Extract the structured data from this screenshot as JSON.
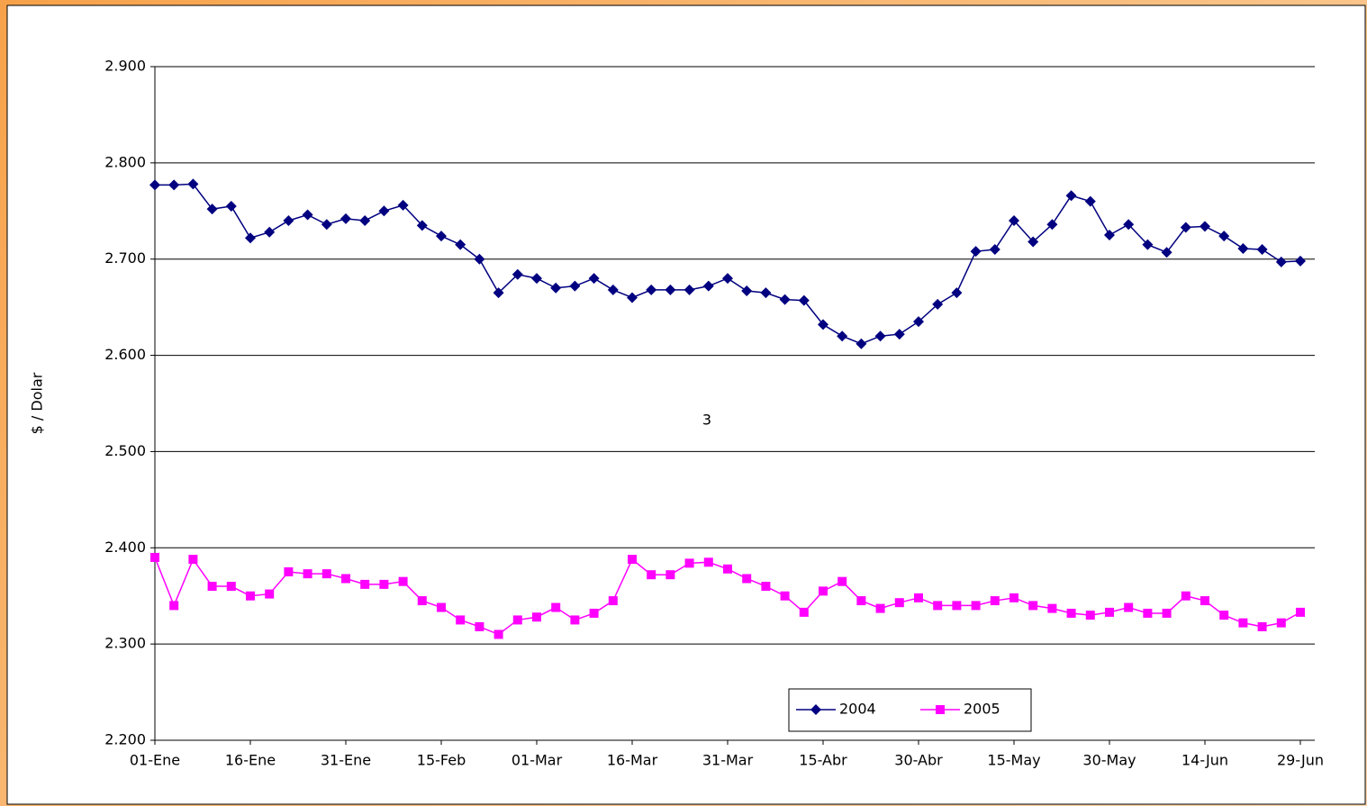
{
  "chart_data": {
    "type": "line",
    "y_label": "$ / Dolar",
    "annotation": "3",
    "categories": [
      "01-Ene",
      null,
      null,
      null,
      null,
      "16-Ene",
      null,
      null,
      null,
      null,
      "31-Ene",
      null,
      null,
      null,
      null,
      "15-Feb",
      null,
      null,
      null,
      null,
      "01-Mar",
      null,
      null,
      null,
      null,
      "16-Mar",
      null,
      null,
      null,
      null,
      "31-Mar",
      null,
      null,
      null,
      null,
      "15-Abr",
      null,
      null,
      null,
      null,
      "30-Abr",
      null,
      null,
      null,
      null,
      "15-May",
      null,
      null,
      null,
      null,
      "30-May",
      null,
      null,
      null,
      null,
      "14-Jun",
      null,
      null,
      null,
      null,
      "29-Jun"
    ],
    "series": [
      {
        "name": "2004",
        "color": "#000080",
        "marker": "diamond",
        "values": [
          2777,
          2777,
          2778,
          2752,
          2755,
          2722,
          2728,
          2740,
          2746,
          2736,
          2742,
          2740,
          2750,
          2756,
          2735,
          2724,
          2715,
          2700,
          2665,
          2684,
          2680,
          2670,
          2672,
          2680,
          2668,
          2660,
          2668,
          2668,
          2668,
          2672,
          2680,
          2667,
          2665,
          2658,
          2657,
          2632,
          2620,
          2612,
          2620,
          2622,
          2635,
          2653,
          2665,
          2708,
          2710,
          2740,
          2718,
          2736,
          2766,
          2760,
          2725,
          2736,
          2715,
          2707,
          2733,
          2734,
          2724,
          2711,
          2710,
          2697,
          2698
        ]
      },
      {
        "name": "2005",
        "color": "#ff00ff",
        "marker": "square",
        "values": [
          2390,
          2340,
          2388,
          2360,
          2360,
          2350,
          2352,
          2375,
          2373,
          2373,
          2368,
          2362,
          2362,
          2365,
          2345,
          2338,
          2325,
          2318,
          2310,
          2325,
          2328,
          2338,
          2325,
          2332,
          2345,
          2388,
          2372,
          2372,
          2384,
          2385,
          2378,
          2368,
          2360,
          2350,
          2333,
          2355,
          2365,
          2345,
          2337,
          2343,
          2348,
          2340,
          2340,
          2340,
          2345,
          2348,
          2340,
          2337,
          2332,
          2330,
          2333,
          2338,
          2332,
          2332,
          2350,
          2345,
          2330,
          2322,
          2318,
          2322,
          2333
        ]
      }
    ],
    "ylim": [
      2200,
      2900
    ],
    "yticks": [
      {
        "value": 2200,
        "label": "2.200"
      },
      {
        "value": 2300,
        "label": "2.300"
      },
      {
        "value": 2400,
        "label": "2.400"
      },
      {
        "value": 2500,
        "label": "2.500"
      },
      {
        "value": 2600,
        "label": "2.600"
      },
      {
        "value": 2700,
        "label": "2.700"
      },
      {
        "value": 2800,
        "label": "2.800"
      },
      {
        "value": 2900,
        "label": "2.900"
      }
    ],
    "grid": true,
    "legend": "bottom"
  }
}
